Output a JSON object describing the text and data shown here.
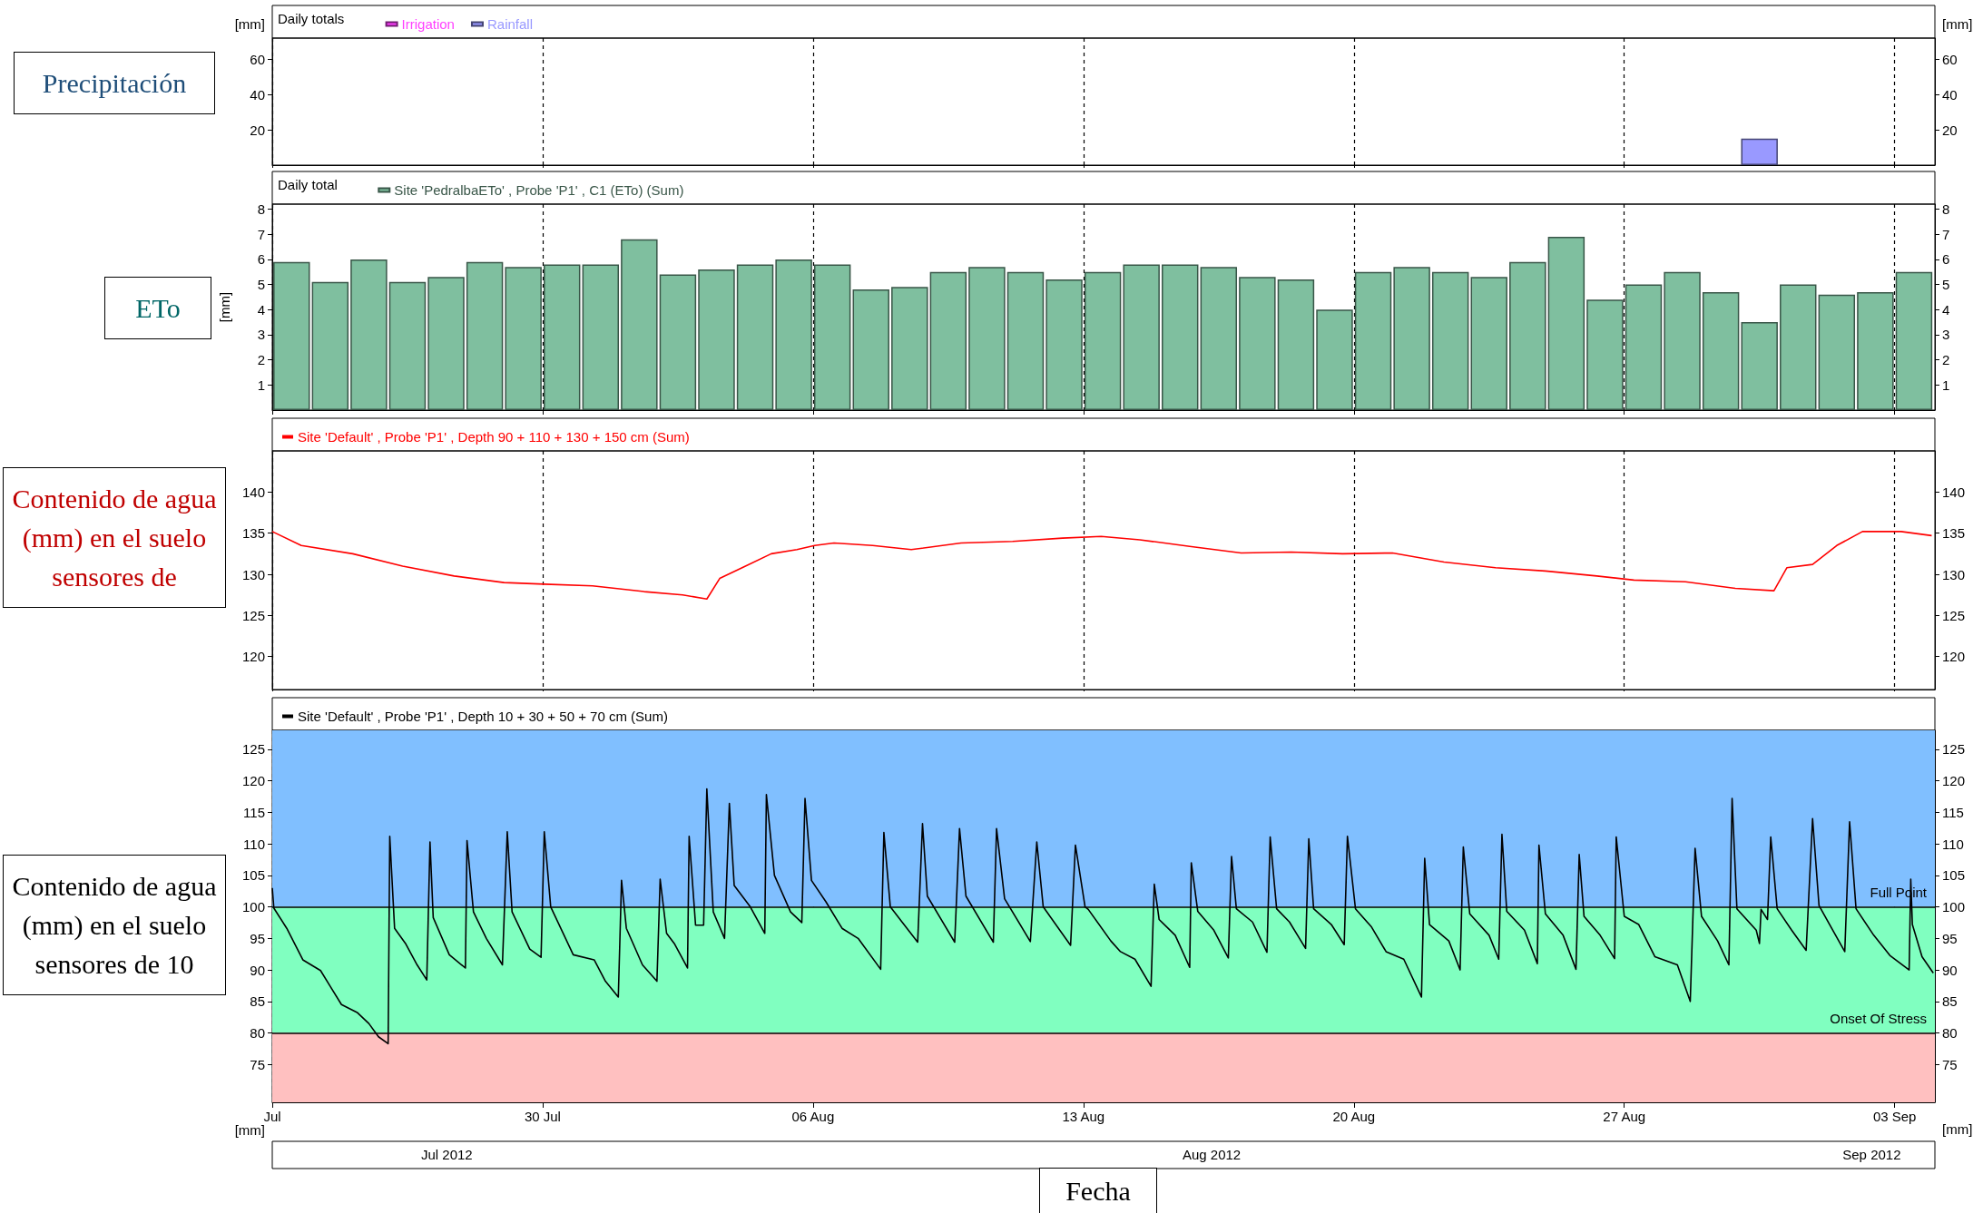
{
  "chart_data": [
    {
      "type": "bar",
      "title": "Precipitación",
      "ylabel": "[mm]",
      "y2label": "[mm]",
      "legend_title": "Daily totals",
      "legend": "top left",
      "grid": "x",
      "tick_labels": "y",
      "xlim": [
        "2012-07-23T00:00",
        "2012-09-04T01:00"
      ],
      "xticks": [
        {
          "value": "2012-07-23T00:00",
          "label": null
        },
        {
          "value": "2012-07-30T00:00",
          "label": null
        },
        {
          "value": "2012-08-06T00:00",
          "label": null
        },
        {
          "value": "2012-08-13T00:00",
          "label": null
        },
        {
          "value": "2012-08-20T00:00",
          "label": null
        },
        {
          "value": "2012-08-27T00:00",
          "label": null
        },
        {
          "value": "2012-09-03T00:00",
          "label": null
        }
      ],
      "ylim": [
        0,
        72
      ],
      "yticks": [
        20,
        40,
        60
      ],
      "y2lim": [
        0,
        72
      ],
      "y2ticks": [
        20,
        40,
        60
      ],
      "series": [
        {
          "name": "Irrigation",
          "color": "#ff40ff"
        },
        {
          "name": "Rainfall",
          "color": "#9999ff",
          "x": [
            "2012-08-30T12:00"
          ],
          "values": [
            15
          ]
        }
      ]
    },
    {
      "type": "bar",
      "title": "ETo",
      "ylabel": "[mm]",
      "legend_title": "Daily total",
      "legend": "top left",
      "grid": "x",
      "tick_labels": "y",
      "xlim": [
        "2012-07-23T00:00",
        "2012-09-04T01:00"
      ],
      "xticks": [
        {
          "value": "2012-07-23T00:00",
          "label": null
        },
        {
          "value": "2012-07-30T00:00",
          "label": null
        },
        {
          "value": "2012-08-06T00:00",
          "label": null
        },
        {
          "value": "2012-08-13T00:00",
          "label": null
        },
        {
          "value": "2012-08-20T00:00",
          "label": null
        },
        {
          "value": "2012-08-27T00:00",
          "label": null
        },
        {
          "value": "2012-09-03T00:00",
          "label": null
        }
      ],
      "ylim": [
        0,
        8.2
      ],
      "yticks": [
        1,
        2,
        3,
        4,
        5,
        6,
        7,
        8
      ],
      "y2lim": [
        0,
        8.2
      ],
      "y2ticks": [
        1,
        2,
        3,
        4,
        5,
        6,
        7,
        8
      ],
      "x": [
        "2012-07-23T12:00",
        "2012-07-24T12:00",
        "2012-07-25T12:00",
        "2012-07-26T12:00",
        "2012-07-27T12:00",
        "2012-07-28T12:00",
        "2012-07-29T12:00",
        "2012-07-30T12:00",
        "2012-07-31T12:00",
        "2012-08-01T12:00",
        "2012-08-02T12:00",
        "2012-08-03T12:00",
        "2012-08-04T12:00",
        "2012-08-05T12:00",
        "2012-08-06T12:00",
        "2012-08-07T12:00",
        "2012-08-08T12:00",
        "2012-08-09T12:00",
        "2012-08-10T12:00",
        "2012-08-11T12:00",
        "2012-08-12T12:00",
        "2012-08-13T12:00",
        "2012-08-14T12:00",
        "2012-08-15T12:00",
        "2012-08-16T12:00",
        "2012-08-17T12:00",
        "2012-08-18T12:00",
        "2012-08-19T12:00",
        "2012-08-20T12:00",
        "2012-08-21T12:00",
        "2012-08-22T12:00",
        "2012-08-23T12:00",
        "2012-08-24T12:00",
        "2012-08-25T12:00",
        "2012-08-26T12:00",
        "2012-08-27T12:00",
        "2012-08-28T12:00",
        "2012-08-29T12:00",
        "2012-08-30T12:00",
        "2012-08-31T12:00",
        "2012-09-01T12:00",
        "2012-09-02T12:00",
        "2012-09-03T12:00"
      ],
      "series": [
        {
          "name": "Site 'PedralbaETo' , Probe 'P1' , C1 (ETo) (Sum)",
          "color": "#7fbf9f",
          "values": [
            5.9,
            5.1,
            6.0,
            5.1,
            5.3,
            5.9,
            5.7,
            5.8,
            5.8,
            6.8,
            5.4,
            5.6,
            5.8,
            6.0,
            5.8,
            4.8,
            4.9,
            5.5,
            5.7,
            5.5,
            5.2,
            5.5,
            5.8,
            5.8,
            5.7,
            5.3,
            5.2,
            4.0,
            5.5,
            5.7,
            5.5,
            5.3,
            5.9,
            6.9,
            4.4,
            5.0,
            5.5,
            4.7,
            3.5,
            5.0,
            4.6,
            4.7,
            5.5
          ]
        }
      ]
    },
    {
      "type": "line",
      "title": "Contenido de agua (mm) en el suelo sensores de",
      "legend": "top left",
      "grid": "x",
      "tick_labels": "y",
      "xlim": [
        "2012-07-23T00:00",
        "2012-09-04T01:00"
      ],
      "xticks": [
        {
          "value": "2012-07-23T00:00",
          "label": null
        },
        {
          "value": "2012-07-30T00:00",
          "label": null
        },
        {
          "value": "2012-08-06T00:00",
          "label": null
        },
        {
          "value": "2012-08-13T00:00",
          "label": null
        },
        {
          "value": "2012-08-20T00:00",
          "label": null
        },
        {
          "value": "2012-08-27T00:00",
          "label": null
        },
        {
          "value": "2012-09-03T00:00",
          "label": null
        }
      ],
      "ylim": [
        116,
        145
      ],
      "yticks": [
        120,
        125,
        130,
        135,
        140
      ],
      "y2lim": [
        116,
        145
      ],
      "y2ticks": [
        120,
        125,
        130,
        135,
        140
      ],
      "series": [
        {
          "name": "Site 'Default' , Probe 'P1' , Depth 90 + 110 + 130 + 150 cm (Sum)",
          "color": "#ff0000",
          "x": [
            "2012-07-23T00:00",
            "2012-07-23T18:00",
            "2012-07-25T02:00",
            "2012-07-26T09:00",
            "2012-07-27T17:00",
            "2012-07-29T00:00",
            "2012-07-30T01:00",
            "2012-07-31T07:00",
            "2012-08-01T15:00",
            "2012-08-02T15:00",
            "2012-08-03T06:00",
            "2012-08-03T14:00",
            "2012-08-04T06:00",
            "2012-08-04T22:00",
            "2012-08-05T14:00",
            "2012-08-06T01:00",
            "2012-08-06T13:00",
            "2012-08-07T13:00",
            "2012-08-08T13:00",
            "2012-08-09T20:00",
            "2012-08-11T04:00",
            "2012-08-12T11:00",
            "2012-08-13T11:00",
            "2012-08-14T11:00",
            "2012-08-15T18:00",
            "2012-08-17T02:00",
            "2012-08-18T09:00",
            "2012-08-19T17:00",
            "2012-08-21T00:00",
            "2012-08-22T08:00",
            "2012-08-23T16:00",
            "2012-08-24T23:00",
            "2012-08-26T07:00",
            "2012-08-27T06:00",
            "2012-08-28T14:00",
            "2012-08-29T21:00",
            "2012-08-30T21:00",
            "2012-08-31T05:00",
            "2012-08-31T21:00",
            "2012-09-01T12:00",
            "2012-09-02T04:00",
            "2012-09-03T04:00",
            "2012-09-03T23:00"
          ],
          "values": [
            135.2,
            133.5,
            132.5,
            131,
            129.8,
            129,
            128.8,
            128.6,
            127.9,
            127.5,
            127.0,
            129.5,
            131,
            132.5,
            133,
            133.5,
            133.8,
            133.5,
            133,
            133.8,
            134,
            134.4,
            134.6,
            134.2,
            133.4,
            132.6,
            132.7,
            132.5,
            132.6,
            131.5,
            130.8,
            130.4,
            129.8,
            129.3,
            129.1,
            128.3,
            128,
            130.8,
            131.2,
            133.5,
            135.2,
            135.2,
            134.7
          ]
        }
      ]
    },
    {
      "type": "line",
      "title": "Contenido de agua (mm) en el suelo sensores de 10",
      "xlabel": "Fecha",
      "ylabel": "[mm]",
      "y2label": "[mm]",
      "legend": "top left",
      "grid": "x",
      "annotations": [
        "Jul 2012",
        "Aug 2012",
        "Sep 2012"
      ],
      "xlim": [
        "2012-07-23T00:00",
        "2012-09-04T01:00"
      ],
      "xticks": [
        {
          "value": "2012-07-23T00:00",
          "label": "Jul"
        },
        {
          "value": "2012-07-30T00:00",
          "label": "30 Jul"
        },
        {
          "value": "2012-08-06T00:00",
          "label": "06 Aug"
        },
        {
          "value": "2012-08-13T00:00",
          "label": "13 Aug"
        },
        {
          "value": "2012-08-20T00:00",
          "label": "20 Aug"
        },
        {
          "value": "2012-08-27T00:00",
          "label": "27 Aug"
        },
        {
          "value": "2012-09-03T00:00",
          "label": "03 Sep"
        }
      ],
      "ylim": [
        69,
        128
      ],
      "yticks": [
        75,
        80,
        85,
        90,
        95,
        100,
        105,
        110,
        115,
        120,
        125
      ],
      "y2lim": [
        69,
        128
      ],
      "y2ticks": [
        75,
        80,
        85,
        90,
        95,
        100,
        105,
        110,
        115,
        120,
        125
      ],
      "bands": [
        {
          "axis": "y",
          "from": 100,
          "to": 128,
          "color": "#80bfff"
        },
        {
          "axis": "y",
          "from": 80,
          "to": 100,
          "color": "#80ffc0"
        },
        {
          "axis": "y",
          "from": 69,
          "to": 80,
          "color": "#ffc0c0"
        }
      ],
      "ref_lines": [
        {
          "axis": "y",
          "value": 100,
          "label": "Full Point",
          "color": "#000000"
        },
        {
          "axis": "y",
          "value": 80,
          "label": "Onset Of Stress",
          "color": "#000000"
        }
      ],
      "series": [
        {
          "name": "Site 'Default' , Probe 'P1' , Depth 10 + 30 + 50 + 70 cm (Sum)",
          "color": "#000000",
          "x": [
            "2012-07-23T00:00",
            "2012-07-23T01:00",
            "2012-07-23T09:00",
            "2012-07-23T19:00",
            "2012-07-24T06:00",
            "2012-07-24T12:00",
            "2012-07-24T19:00",
            "2012-07-25T05:00",
            "2012-07-25T12:00",
            "2012-07-25T18:00",
            "2012-07-26T00:00",
            "2012-07-26T01:00",
            "2012-07-26T04:00",
            "2012-07-26T11:00",
            "2012-07-26T18:00",
            "2012-07-27T00:00",
            "2012-07-27T02:00",
            "2012-07-27T04:00",
            "2012-07-27T14:00",
            "2012-07-28T00:00",
            "2012-07-28T01:00",
            "2012-07-28T05:00",
            "2012-07-28T13:00",
            "2012-07-28T23:00",
            "2012-07-29T02:00",
            "2012-07-29T05:00",
            "2012-07-29T16:00",
            "2012-07-29T23:00",
            "2012-07-30T01:00",
            "2012-07-30T05:00",
            "2012-07-30T19:00",
            "2012-07-31T08:00",
            "2012-07-31T15:00",
            "2012-07-31T23:00",
            "2012-08-01T01:00",
            "2012-08-01T04:00",
            "2012-08-01T14:00",
            "2012-08-01T23:00",
            "2012-08-02T01:00",
            "2012-08-02T05:00",
            "2012-08-02T10:00",
            "2012-08-02T18:00",
            "2012-08-02T19:00",
            "2012-08-02T23:00",
            "2012-08-03T04:00",
            "2012-08-03T06:00",
            "2012-08-03T10:00",
            "2012-08-03T17:00",
            "2012-08-03T20:00",
            "2012-08-03T23:00",
            "2012-08-04T09:00",
            "2012-08-04T18:00",
            "2012-08-04T19:00",
            "2012-08-05T00:00",
            "2012-08-05T10:00",
            "2012-08-05T17:00",
            "2012-08-05T19:00",
            "2012-08-05T23:00",
            "2012-08-06T08:00",
            "2012-08-06T18:00",
            "2012-08-07T04:00",
            "2012-08-07T18:00",
            "2012-08-07T20:00",
            "2012-08-08T00:00",
            "2012-08-08T17:00",
            "2012-08-08T20:00",
            "2012-08-08T23:00",
            "2012-08-09T16:00",
            "2012-08-09T19:00",
            "2012-08-09T23:00",
            "2012-08-10T16:00",
            "2012-08-10T18:00",
            "2012-08-10T23:00",
            "2012-08-11T15:00",
            "2012-08-11T19:00",
            "2012-08-11T23:00",
            "2012-08-12T16:00",
            "2012-08-12T19:00",
            "2012-08-13T01:00",
            "2012-08-13T03:00",
            "2012-08-13T17:00",
            "2012-08-13T23:00",
            "2012-08-14T08:00",
            "2012-08-14T18:00",
            "2012-08-14T20:00",
            "2012-08-14T23:00",
            "2012-08-15T09:00",
            "2012-08-15T18:00",
            "2012-08-15T19:00",
            "2012-08-15T23:00",
            "2012-08-16T09:00",
            "2012-08-16T18:00",
            "2012-08-16T20:00",
            "2012-08-16T23:00",
            "2012-08-17T09:00",
            "2012-08-17T18:00",
            "2012-08-17T20:00",
            "2012-08-18T00:00",
            "2012-08-18T08:00",
            "2012-08-18T18:00",
            "2012-08-18T20:00",
            "2012-08-18T23:00",
            "2012-08-19T10:00",
            "2012-08-19T18:00",
            "2012-08-19T20:00",
            "2012-08-20T01:00",
            "2012-08-20T11:00",
            "2012-08-20T20:00",
            "2012-08-21T07:00",
            "2012-08-21T18:00",
            "2012-08-21T20:00",
            "2012-08-21T23:00",
            "2012-08-22T11:00",
            "2012-08-22T18:00",
            "2012-08-22T20:00",
            "2012-08-23T00:00",
            "2012-08-23T12:00",
            "2012-08-23T18:00",
            "2012-08-23T20:00",
            "2012-08-23T23:00",
            "2012-08-24T10:00",
            "2012-08-24T18:00",
            "2012-08-24T19:00",
            "2012-08-24T23:00",
            "2012-08-25T10:00",
            "2012-08-25T18:00",
            "2012-08-25T20:00",
            "2012-08-25T23:00",
            "2012-08-26T09:00",
            "2012-08-26T18:00",
            "2012-08-26T19:00",
            "2012-08-27T00:00",
            "2012-08-27T09:00",
            "2012-08-27T19:00",
            "2012-08-28T09:00",
            "2012-08-28T17:00",
            "2012-08-28T20:00",
            "2012-08-29T00:00",
            "2012-08-29T10:00",
            "2012-08-29T17:00",
            "2012-08-29T19:00",
            "2012-08-29T22:00",
            "2012-08-30T10:00",
            "2012-08-30T12:00",
            "2012-08-30T13:00",
            "2012-08-30T17:00",
            "2012-08-30T19:00",
            "2012-08-30T23:00",
            "2012-08-31T08:00",
            "2012-08-31T17:00",
            "2012-08-31T21:00",
            "2012-09-01T01:00",
            "2012-09-01T17:00",
            "2012-09-01T20:00",
            "2012-09-02T00:00",
            "2012-09-02T11:00",
            "2012-09-02T21:00",
            "2012-09-03T09:00",
            "2012-09-03T10:00",
            "2012-09-03T11:00",
            "2012-09-03T17:00",
            "2012-09-04T00:00"
          ],
          "values": [
            103,
            99.8,
            96.6,
            91.6,
            89.9,
            87.4,
            84.5,
            83.2,
            81.5,
            79.4,
            78.3,
            111.2,
            96.6,
            94.1,
            90.8,
            88.4,
            110.3,
            98.3,
            92.4,
            90.3,
            110.5,
            99.2,
            95.0,
            90.8,
            111.9,
            99.2,
            93.3,
            92.0,
            111.9,
            100,
            92.4,
            91.6,
            88.2,
            85.7,
            104.2,
            96.6,
            90.8,
            88.2,
            104.4,
            95.8,
            94.1,
            90.3,
            111.2,
            97.1,
            97.1,
            118.7,
            99.2,
            95,
            116.4,
            103.4,
            100,
            95.8,
            117.8,
            105,
            99.2,
            97.5,
            117.2,
            104.2,
            100.8,
            96.6,
            95,
            90.1,
            111.8,
            100,
            94.4,
            113.2,
            101.7,
            94.4,
            112.4,
            101.7,
            94.4,
            112.4,
            101.3,
            94.5,
            110.3,
            100,
            93.9,
            109.8,
            100,
            99.6,
            94.6,
            92.9,
            91.7,
            87.4,
            103.6,
            98.0,
            95.5,
            90.4,
            107,
            99.3,
            96.3,
            91.9,
            108,
            99.7,
            97.6,
            92.8,
            111.1,
            99.7,
            97.6,
            93.4,
            110.8,
            99.7,
            97.2,
            94,
            111.2,
            99.7,
            96.8,
            92.9,
            91.7,
            85.7,
            107.7,
            97.2,
            94.6,
            90,
            109.5,
            98.9,
            95.5,
            91.7,
            111.5,
            99.3,
            96.3,
            91,
            109.8,
            98.9,
            95.5,
            90.1,
            108.3,
            98.5,
            95.5,
            91.8,
            111.1,
            98.5,
            97.2,
            92.1,
            90.8,
            85,
            109.3,
            98.5,
            94.6,
            90.8,
            117.2,
            99.7,
            96.3,
            94.2,
            99.6,
            98,
            111.1,
            99.7,
            96.3,
            93.1,
            114,
            100.2,
            92.9,
            113.5,
            99.7,
            95.5,
            92.3,
            90,
            104.4,
            97.2,
            92.1,
            89.5
          ]
        }
      ]
    }
  ]
}
